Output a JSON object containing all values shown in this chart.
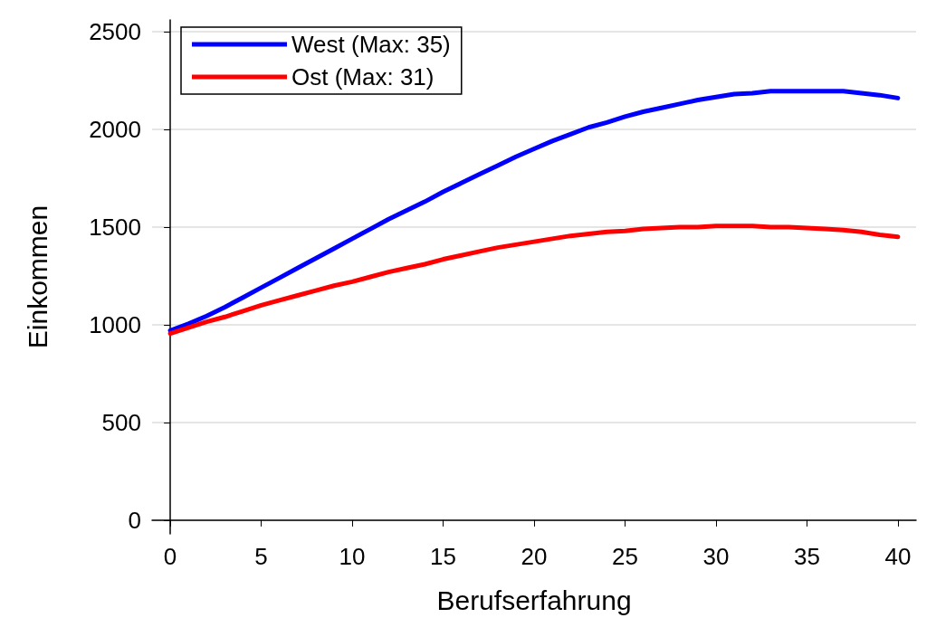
{
  "chart_data": {
    "type": "line",
    "xlabel": "Berufserfahrung",
    "ylabel": "Einkommen",
    "x": [
      0,
      1,
      2,
      3,
      4,
      5,
      6,
      7,
      8,
      9,
      10,
      11,
      12,
      13,
      14,
      15,
      16,
      17,
      18,
      19,
      20,
      21,
      22,
      23,
      24,
      25,
      26,
      27,
      28,
      29,
      30,
      31,
      32,
      33,
      34,
      35,
      36,
      37,
      38,
      39,
      40
    ],
    "series": [
      {
        "name": "West (Max: 35)",
        "color": "#0000ff",
        "values": [
          970,
          1005,
          1045,
          1090,
          1140,
          1190,
          1240,
          1290,
          1340,
          1390,
          1440,
          1490,
          1540,
          1585,
          1630,
          1680,
          1725,
          1770,
          1815,
          1860,
          1900,
          1940,
          1975,
          2010,
          2035,
          2065,
          2090,
          2110,
          2130,
          2150,
          2165,
          2180,
          2185,
          2195,
          2195,
          2195,
          2195,
          2195,
          2185,
          2175,
          2160
        ]
      },
      {
        "name": "Ost (Max: 31)",
        "color": "#ff0000",
        "values": [
          955,
          985,
          1015,
          1040,
          1070,
          1100,
          1125,
          1150,
          1175,
          1200,
          1220,
          1245,
          1270,
          1290,
          1310,
          1335,
          1355,
          1375,
          1395,
          1410,
          1425,
          1440,
          1455,
          1465,
          1475,
          1480,
          1490,
          1495,
          1500,
          1500,
          1505,
          1505,
          1505,
          1500,
          1500,
          1495,
          1490,
          1485,
          1475,
          1460,
          1450
        ]
      }
    ],
    "xlim": [
      -1,
      41
    ],
    "xticks": [
      0,
      5,
      10,
      15,
      20,
      25,
      30,
      35,
      40
    ],
    "ylim": [
      -70,
      2560
    ],
    "yticks": [
      0,
      500,
      1000,
      1500,
      2000,
      2500
    ],
    "grid": "y",
    "legend": "top left",
    "marker": "none",
    "line_style": "solid"
  }
}
